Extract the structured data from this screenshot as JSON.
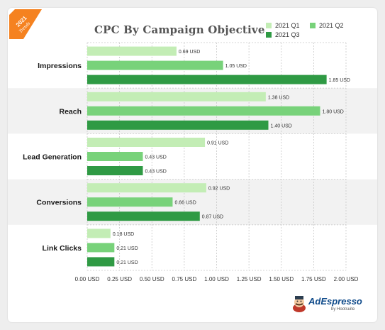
{
  "badge": {
    "year": "2021",
    "label": "Trends"
  },
  "brand": {
    "name": "AdEspresso",
    "sub": "by Hootsuite"
  },
  "colors": {
    "q1": "#c3edb5",
    "q2": "#78d27a",
    "q3": "#2f9a44",
    "band": "#f2f2f2",
    "badge": "#f58220",
    "grid": "#c8c8c8"
  },
  "chart_data": {
    "type": "bar",
    "orientation": "horizontal",
    "title": "CPC By Campaign Objective",
    "xlabel": "",
    "ylabel": "",
    "xlim": [
      0,
      2
    ],
    "x_ticks": [
      "0.00 USD",
      "0.25 USD",
      "0.50 USD",
      "0.75 USD",
      "1.00 USD",
      "1.25 USD",
      "1.50 USD",
      "1.75 USD",
      "2.00 USD"
    ],
    "categories": [
      "Impressions",
      "Reach",
      "Lead Generation",
      "Conversions",
      "Link Clicks"
    ],
    "legend_position": "top-right",
    "grid": true,
    "series": [
      {
        "name": "2021 Q1",
        "values": [
          0.69,
          1.38,
          0.91,
          0.92,
          0.18
        ],
        "labels": [
          "0.69 USD",
          "1.38 USD",
          "0.91 USD",
          "0.92 USD",
          "0.18 USD"
        ]
      },
      {
        "name": "2021 Q2",
        "values": [
          1.05,
          1.8,
          0.43,
          0.66,
          0.21
        ],
        "labels": [
          "1.05 USD",
          "1.80 USD",
          "0.43 USD",
          "0.66 USD",
          "0.21 USD"
        ]
      },
      {
        "name": "2021 Q3",
        "values": [
          1.85,
          1.4,
          0.43,
          0.87,
          0.21
        ],
        "labels": [
          "1.85 USD",
          "1.40 USD",
          "0.43 USD",
          "0.87 USD",
          "0.21 USD"
        ]
      }
    ]
  }
}
